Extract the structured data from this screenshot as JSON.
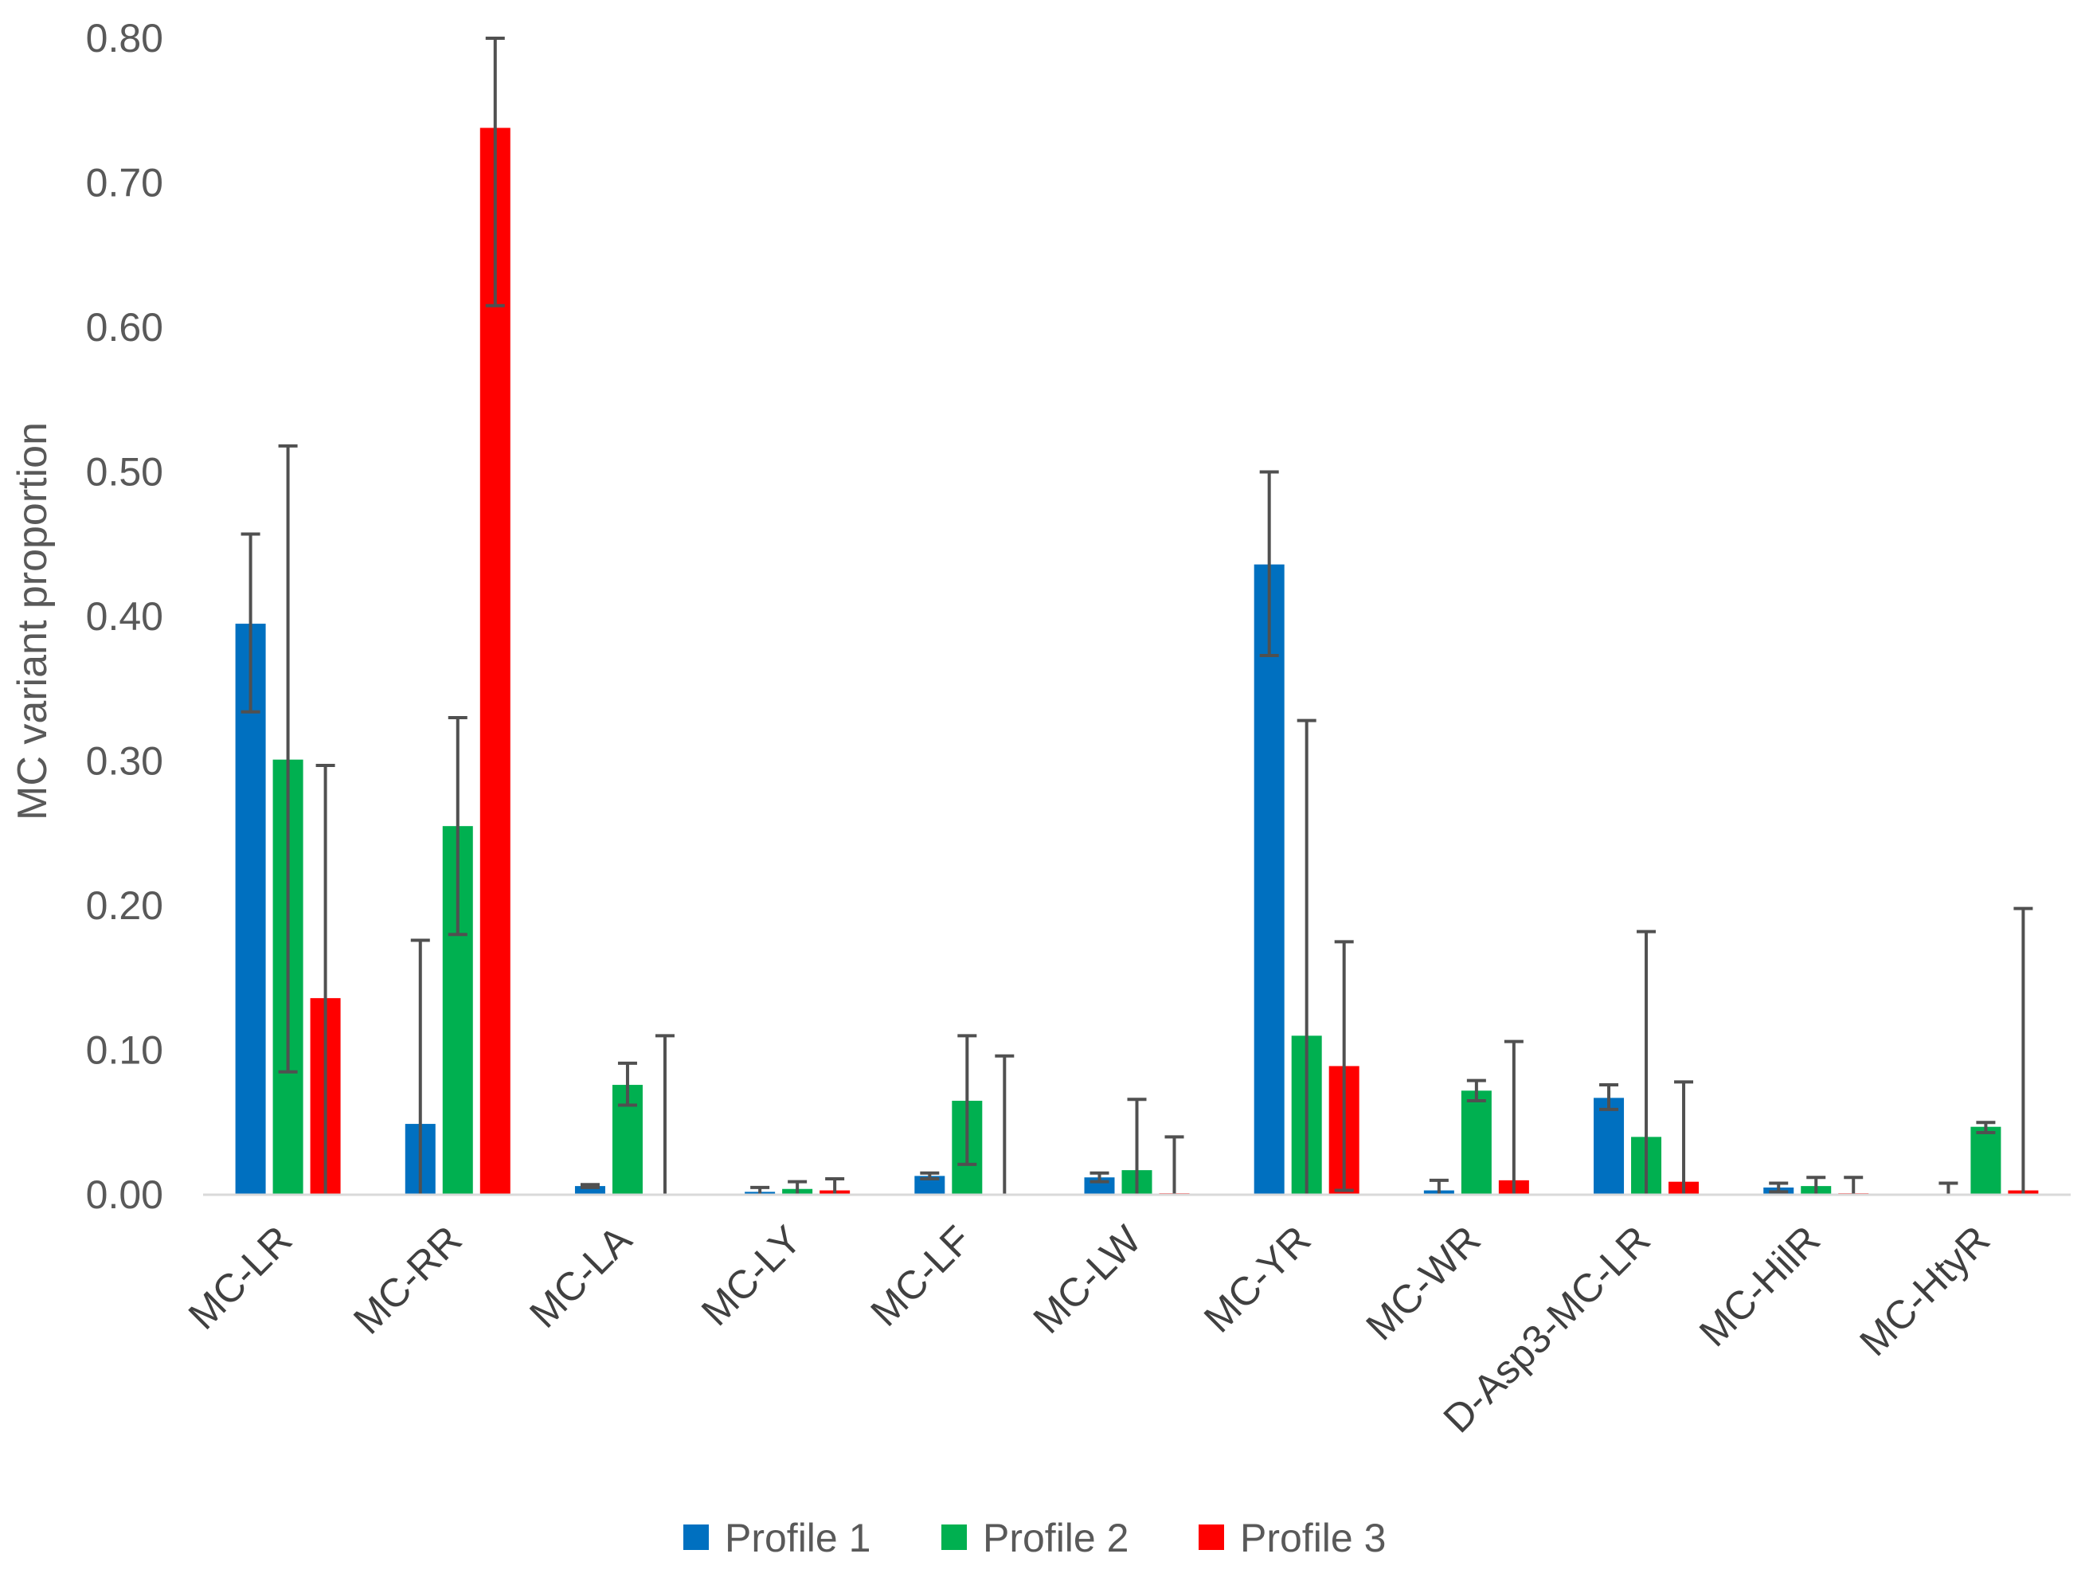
{
  "chart_data": {
    "type": "bar",
    "title": "",
    "xlabel": "",
    "ylabel": "MC variant proportion",
    "ylim": [
      0,
      0.8
    ],
    "yticks": [
      "0.00",
      "0.10",
      "0.20",
      "0.30",
      "0.40",
      "0.50",
      "0.60",
      "0.70",
      "0.80"
    ],
    "categories": [
      "MC-LR",
      "MC-RR",
      "MC-LA",
      "MC-LY",
      "MC-LF",
      "MC-LW",
      "MC-YR",
      "MC-WR",
      "D-Asp3-MC-LR",
      "MC-HilR",
      "MC-HtyR"
    ],
    "series": [
      {
        "name": "Profile 1",
        "color": "#0070C0",
        "values": [
          0.395,
          0.049,
          0.006,
          0.002,
          0.013,
          0.012,
          0.436,
          0.003,
          0.067,
          0.005,
          0.0
        ],
        "err_low": [
          0.334,
          0.0,
          0.005,
          0.0,
          0.011,
          0.009,
          0.373,
          0.0,
          0.059,
          0.002,
          0.0
        ],
        "err_high": [
          0.457,
          0.176,
          0.007,
          0.005,
          0.015,
          0.015,
          0.5,
          0.01,
          0.076,
          0.008,
          0.008
        ]
      },
      {
        "name": "Profile 2",
        "color": "#00B050",
        "values": [
          0.301,
          0.255,
          0.076,
          0.004,
          0.065,
          0.017,
          0.11,
          0.072,
          0.04,
          0.006,
          0.047
        ],
        "err_low": [
          0.085,
          0.18,
          0.062,
          0.0,
          0.021,
          0.0,
          0.0,
          0.065,
          0.0,
          0.0,
          0.043
        ],
        "err_high": [
          0.518,
          0.33,
          0.091,
          0.009,
          0.11,
          0.066,
          0.328,
          0.079,
          0.182,
          0.012,
          0.05
        ]
      },
      {
        "name": "Profile 3",
        "color": "#FF0000",
        "values": [
          0.136,
          0.738,
          0.0,
          0.003,
          0.0,
          0.001,
          0.089,
          0.01,
          0.009,
          0.001,
          0.003
        ],
        "err_low": [
          0.0,
          0.615,
          0.0,
          0.0,
          0.0,
          0.0,
          0.003,
          0.0,
          0.0,
          0.0,
          0.0
        ],
        "err_high": [
          0.297,
          0.8,
          0.11,
          0.011,
          0.096,
          0.04,
          0.175,
          0.106,
          0.078,
          0.012,
          0.198
        ]
      }
    ],
    "error_bars": true,
    "grid": false,
    "legend": "bottom-center"
  }
}
